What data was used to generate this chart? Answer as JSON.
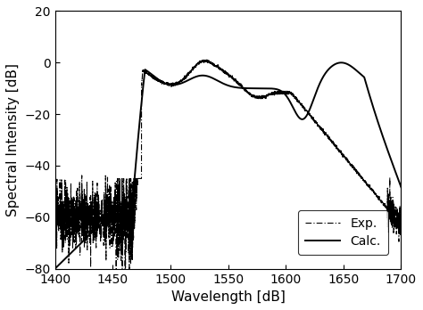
{
  "xlabel": "Wavelength [dB]",
  "ylabel": "Spectral Intensity [dB]",
  "xlim": [
    1400,
    1700
  ],
  "ylim": [
    -80,
    20
  ],
  "xticks": [
    1400,
    1450,
    1500,
    1550,
    1600,
    1650,
    1700
  ],
  "yticks": [
    -80,
    -60,
    -40,
    -20,
    0,
    20
  ],
  "legend_labels": [
    "Exp.",
    "Calc."
  ],
  "line_color": "#000000",
  "background_color": "#ffffff",
  "exp_noise_seed": 10,
  "exp_noise_amplitude": 2.5,
  "exp_noise_amplitude_low": 6.0,
  "calc_linewidth": 1.4,
  "exp_linewidth": 0.8
}
